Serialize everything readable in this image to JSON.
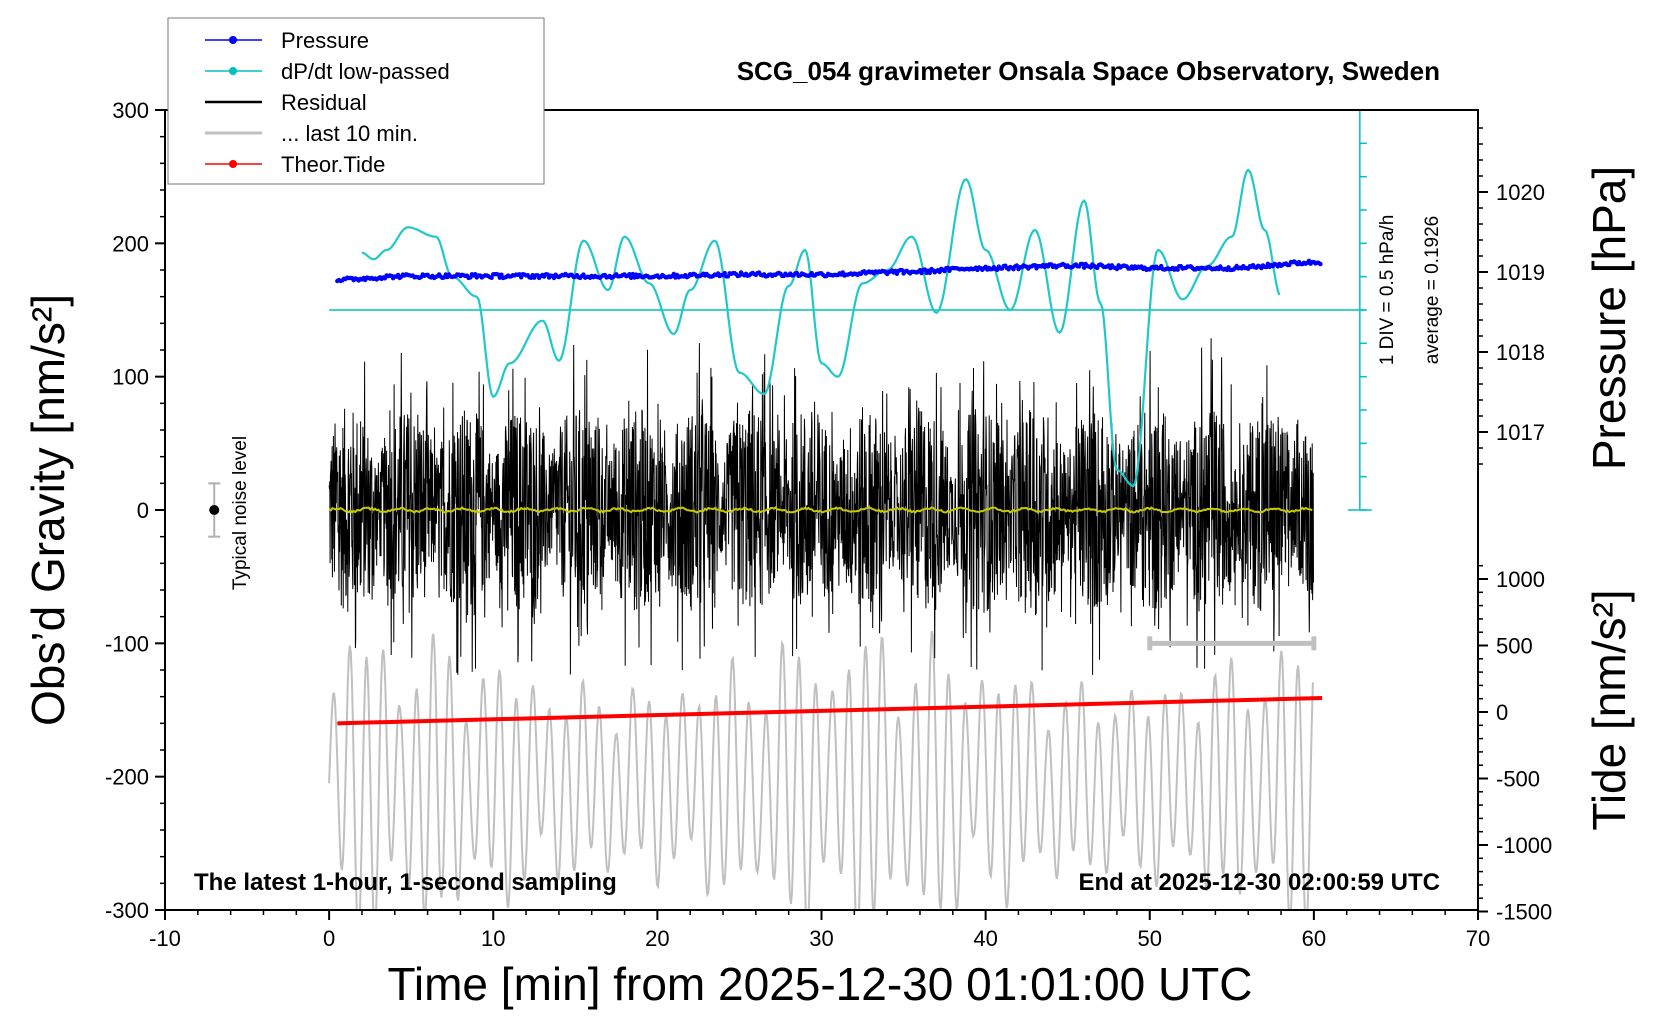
{
  "chart_data": {
    "type": "line",
    "title": "SCG_054 gravimeter Onsala Space Observatory, Sweden",
    "xlabel": "Time [min] from 2025-12-30 01:01:00 UTC",
    "ylabel_left": "Obs’d Gravity [nm/s²]",
    "ylabel_right_top": "Pressure [hPa]",
    "ylabel_right_bottom": "Tide [nm/s²]",
    "xlim": [
      -10,
      70
    ],
    "ylim": [
      -300,
      300
    ],
    "x_ticks": [
      -10,
      0,
      10,
      20,
      30,
      40,
      50,
      60,
      70
    ],
    "y_ticks_left": [
      -300,
      -200,
      -100,
      0,
      100,
      200,
      300
    ],
    "pressure_ticks": [
      1017,
      1018,
      1019,
      1020
    ],
    "tide_ticks": [
      -1500,
      -1000,
      -500,
      0,
      500,
      1000
    ],
    "grid": false,
    "legend_position": "top-left",
    "legend": [
      {
        "name": "Pressure",
        "color": "#0000ff",
        "marker": true
      },
      {
        "name": "dP/dt low-passed",
        "color": "#00c0c0",
        "marker": true
      },
      {
        "name": "Residual",
        "color": "#000000",
        "marker": false
      },
      {
        "name": "... last 10 min.",
        "color": "#c0c0c0",
        "marker": false
      },
      {
        "name": "Theor.Tide",
        "color": "#ff0000",
        "marker": true
      }
    ],
    "annotations": {
      "bottom_left": "The latest 1-hour, 1-second sampling",
      "bottom_right": "End at 2025-12-30 02:00:59 UTC",
      "noise_label": "Typical noise level",
      "scale_div": "1 DIV = 0.5 hPa/h",
      "scale_avg": "average = 0.1926"
    },
    "series": [
      {
        "name": "Pressure",
        "unit": "hPa",
        "x": [
          0,
          5,
          10,
          15,
          20,
          25,
          30,
          35,
          40,
          45,
          50,
          55,
          60
        ],
        "values": [
          1018.9,
          1018.95,
          1018.95,
          1018.95,
          1018.95,
          1018.97,
          1018.97,
          1019.0,
          1019.05,
          1019.08,
          1019.05,
          1019.05,
          1019.12
        ]
      },
      {
        "name": "dP/dt low-passed",
        "unit": "nm/s² (display)",
        "x": [
          2,
          2.7,
          3.5,
          4.8,
          6.5,
          7.5,
          9,
          10,
          11,
          13,
          14,
          15.5,
          17,
          18,
          19.5,
          21,
          22,
          23.5,
          25,
          26.5,
          28,
          29,
          30,
          31,
          32.5,
          34,
          35.5,
          37,
          38.8,
          40,
          41.5,
          43,
          44.5,
          46,
          47,
          48,
          49,
          50.5,
          52,
          53.5,
          55,
          56,
          57,
          58
        ],
        "values": [
          193,
          188,
          195,
          212,
          205,
          175,
          160,
          85,
          110,
          142,
          112,
          202,
          165,
          205,
          170,
          132,
          165,
          202,
          103,
          87,
          168,
          195,
          110,
          100,
          170,
          180,
          205,
          148,
          248,
          195,
          150,
          210,
          133,
          232,
          155,
          30,
          18,
          195,
          158,
          183,
          205,
          255,
          210,
          160
        ]
      },
      {
        "name": "Residual",
        "unit": "nm/s²",
        "x_range": [
          0,
          60
        ],
        "amplitude_approx": 130
      },
      {
        "name": "Yellow low-passed",
        "unit": "nm/s²",
        "x_range": [
          0,
          60
        ],
        "values_approx": 0
      },
      {
        "name": "... last 10 min.",
        "unit": "nm/s²",
        "x_range": [
          0,
          60
        ],
        "center": -205,
        "amplitude_approx": 110
      },
      {
        "name": "Theor.Tide",
        "unit": "nm/s²",
        "x": [
          0.5,
          60.5
        ],
        "values": [
          -160,
          -141
        ]
      }
    ]
  }
}
